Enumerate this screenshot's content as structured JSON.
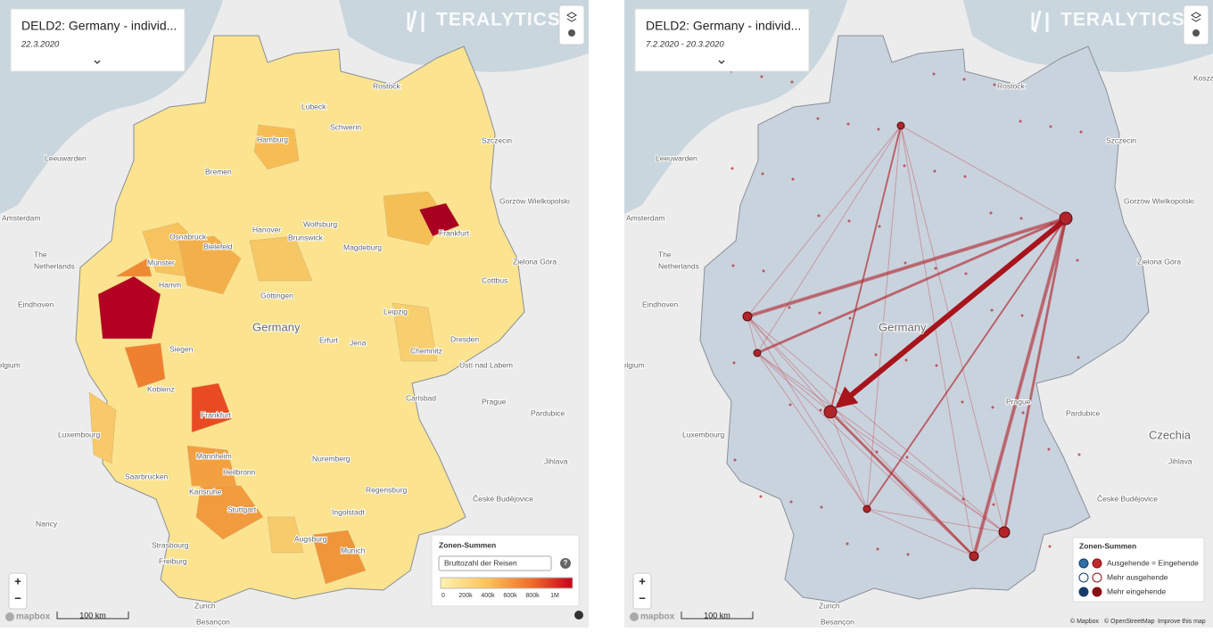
{
  "left_panel": {
    "header": {
      "title": "DELD2: Germany - individ...",
      "date": "22.3.2020"
    },
    "logo": "TERALYTICS",
    "legend": {
      "title": "Zonen-Summen",
      "select": "Bruttozahl der Reisen",
      "help": "?",
      "ticks": [
        "0",
        "200k",
        "400k",
        "600k",
        "800k",
        "1M"
      ]
    },
    "zoom": [
      "+",
      "−"
    ],
    "mapbox": "mapbox",
    "scale": "100 km",
    "places": [
      "Leeuwarden",
      "Amsterdam",
      "The",
      "Netherlands",
      "Eindhoven",
      "Belgium",
      "Luxembourg",
      "Nancy",
      "Strasbourg",
      "Zurich",
      "Freiburg",
      "Saarbrücken",
      "Koblenz",
      "Siegen",
      "Hamm",
      "Münster",
      "Osnabrück",
      "Bielefeld",
      "Bremen",
      "Hamburg",
      "Lübeck",
      "Schwerin",
      "Rostock",
      "Hanover",
      "Wolfsburg",
      "Brunswick",
      "Magdeburg",
      "Göttingen",
      "Germany",
      "Erfurt",
      "Jena",
      "Leipzig",
      "Dresden",
      "Chemnitz",
      "Cottbus",
      "Frankfurt",
      "Frankfurt",
      "Mannheim",
      "Karlsruhe",
      "Heilbronn",
      "Stuttgart",
      "Nuremberg",
      "Regensburg",
      "Ingolstadt",
      "Augsburg",
      "Munich",
      "Carlsbad",
      "Prague",
      "Pardubice",
      "Ústí nad Labem",
      "Jihlava",
      "České Budějovice",
      "Szczecin",
      "Gorzów Wielkopolski",
      "Zielona Góra",
      "Besançon"
    ]
  },
  "right_panel": {
    "header": {
      "title": "DELD2: Germany - individ...",
      "date": "7.2.2020 - 20.3.2020"
    },
    "logo": "TERALYTICS",
    "legend": {
      "title": "Zonen-Summen",
      "items": [
        "Ausgehende = Eingehende",
        "Mehr ausgehende",
        "Mehr eingehende"
      ]
    },
    "zoom": [
      "+",
      "−"
    ],
    "mapbox": "mapbox",
    "scale": "100 km",
    "attribution": [
      "© Mapbox",
      "© OpenStreetMap",
      "Improve this map"
    ],
    "places": [
      "Leeuwarden",
      "Amsterdam",
      "The",
      "Netherlands",
      "Eindhoven",
      "Belgium",
      "Luxembourg",
      "Germany",
      "Prague",
      "Pardubice",
      "Czechia",
      "Jihlava",
      "České Budějovice",
      "Szczecin",
      "Gorzów Wielkopolski",
      "Zielona Góra",
      "Koszal",
      "Rostock",
      "Zurich",
      "Besançon"
    ]
  }
}
